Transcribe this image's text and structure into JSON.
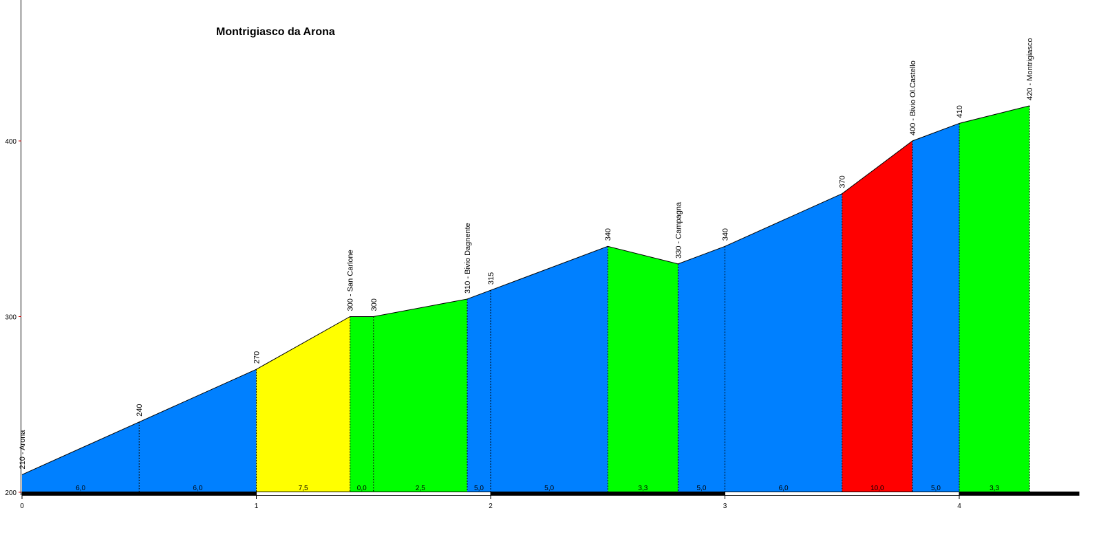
{
  "chart_data": {
    "type": "area",
    "title": "Montrigiasco da Arona",
    "xlabel": "",
    "ylabel": "",
    "xlim": [
      0,
      4.6
    ],
    "ylim": [
      200,
      480
    ],
    "x_ticks": [
      "0",
      "1",
      "2",
      "3",
      "4"
    ],
    "y_ticks": [
      "200",
      "300",
      "400"
    ],
    "points": [
      {
        "x": 0.0,
        "y": 210,
        "label": "210 - Arona"
      },
      {
        "x": 0.5,
        "y": 240,
        "label": "240"
      },
      {
        "x": 1.0,
        "y": 270,
        "label": "270"
      },
      {
        "x": 1.4,
        "y": 300,
        "label": "300 - San Carlone"
      },
      {
        "x": 1.5,
        "y": 300,
        "label": "300"
      },
      {
        "x": 1.9,
        "y": 310,
        "label": "310 - Bivio Dagnente"
      },
      {
        "x": 2.0,
        "y": 315,
        "label": "315"
      },
      {
        "x": 2.5,
        "y": 340,
        "label": "340"
      },
      {
        "x": 2.8,
        "y": 330,
        "label": "330 - Campagna"
      },
      {
        "x": 3.0,
        "y": 340,
        "label": "340"
      },
      {
        "x": 3.5,
        "y": 370,
        "label": "370"
      },
      {
        "x": 3.8,
        "y": 400,
        "label": "400 - Bivio Ol.Castello"
      },
      {
        "x": 4.0,
        "y": 410,
        "label": "410"
      },
      {
        "x": 4.3,
        "y": 420,
        "label": "420 - Montrigiasco"
      }
    ],
    "segments": [
      {
        "from": 0.0,
        "to": 0.5,
        "gradient": "6,0",
        "color": "#0080ff"
      },
      {
        "from": 0.5,
        "to": 1.0,
        "gradient": "6,0",
        "color": "#0080ff"
      },
      {
        "from": 1.0,
        "to": 1.4,
        "gradient": "7,5",
        "color": "#ffff00"
      },
      {
        "from": 1.4,
        "to": 1.5,
        "gradient": "0,0",
        "color": "#00ff00"
      },
      {
        "from": 1.5,
        "to": 1.9,
        "gradient": "2,5",
        "color": "#00ff00"
      },
      {
        "from": 1.9,
        "to": 2.0,
        "gradient": "5,0",
        "color": "#0080ff"
      },
      {
        "from": 2.0,
        "to": 2.5,
        "gradient": "5,0",
        "color": "#0080ff"
      },
      {
        "from": 2.5,
        "to": 2.8,
        "gradient": "3,3",
        "color": "#00ff00"
      },
      {
        "from": 2.8,
        "to": 3.0,
        "gradient": "5,0",
        "color": "#0080ff"
      },
      {
        "from": 3.0,
        "to": 3.5,
        "gradient": "6,0",
        "color": "#0080ff"
      },
      {
        "from": 3.5,
        "to": 3.8,
        "gradient": "10,0",
        "color": "#ff0000"
      },
      {
        "from": 3.8,
        "to": 4.0,
        "gradient": "5,0",
        "color": "#0080ff"
      },
      {
        "from": 4.0,
        "to": 4.3,
        "gradient": "3,3",
        "color": "#00ff00"
      }
    ],
    "grid": false,
    "legend": "none"
  }
}
